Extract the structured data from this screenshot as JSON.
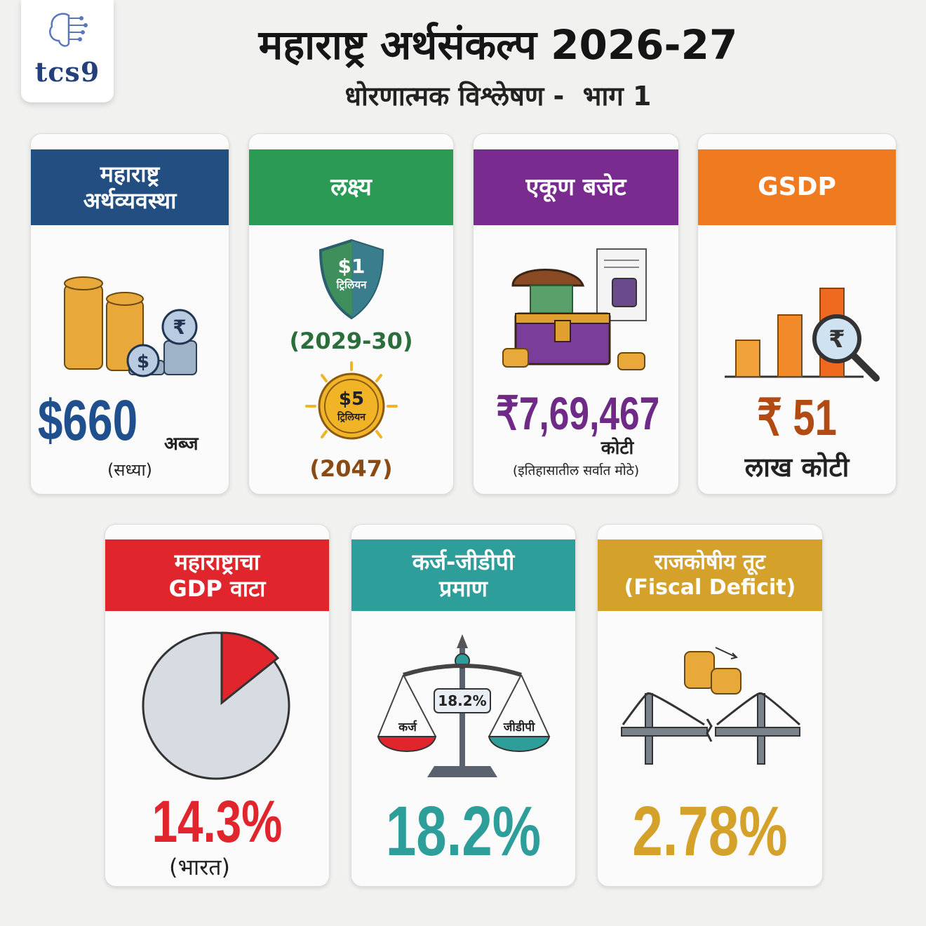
{
  "header": {
    "logo": "tcs9",
    "title": "महाराष्ट्र अर्थसंकल्प 2026-27",
    "subtitle": "धोरणात्मक विश्लेषण -  भाग 1"
  },
  "cards": [
    {
      "title": [
        "महाराष्ट्र",
        "अर्थव्यवस्था"
      ],
      "icon_labels": [
        "₹",
        "$"
      ],
      "value": "$660",
      "unit": "अब्ज",
      "note": "(सध्या)"
    },
    {
      "title": [
        "लक्ष्य"
      ],
      "badge_1": [
        "$1",
        "ट्रिलियन"
      ],
      "year_1": "(2029-30)",
      "badge_2": [
        "$5",
        "ट्रिलियन"
      ],
      "year_2": "(2047)"
    },
    {
      "title": [
        "एकूण बजेट"
      ],
      "value": "₹7,69,467",
      "unit": "कोटी",
      "note": "(इतिहासातील सर्वात मोठे)"
    },
    {
      "title": [
        "GSDP"
      ],
      "icon_labels": [
        "₹"
      ],
      "value": "₹ 51",
      "unit": "लाख कोटी"
    },
    {
      "title": [
        "महाराष्ट्राचा",
        "GDP वाटा"
      ],
      "value": "14.3%",
      "note": "(भारत)"
    },
    {
      "title": [
        "कर्ज-जीडीपी",
        "प्रमाण"
      ],
      "icon_labels": [
        "18.2%",
        "कर्ज",
        "जीडीपी"
      ],
      "value": "18.2%"
    },
    {
      "title": [
        "राजकोषीय तूट",
        "(Fiscal Deficit)"
      ],
      "value": "2.78%"
    }
  ]
}
